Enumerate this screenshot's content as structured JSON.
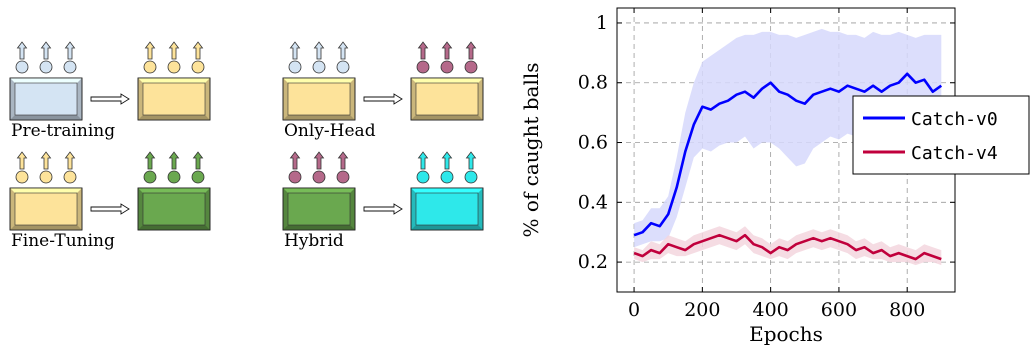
{
  "diagram": {
    "panels": [
      {
        "label": "Pre-training",
        "from": {
          "fill": "#d4e4f3",
          "edge": "#6f8fb3",
          "circle": "#d4e4f3",
          "arrow": "#d4e4f3"
        },
        "to": {
          "fill": "#fde39a",
          "edge": "#b79a4a",
          "circle": "#fde39a",
          "arrow": "#fde39a"
        }
      },
      {
        "label": "Only-Head",
        "from": {
          "fill": "#fde39a",
          "edge": "#b79a4a",
          "circle": "#d4e4f3",
          "arrow": "#d4e4f3"
        },
        "to": {
          "fill": "#fde39a",
          "edge": "#b79a4a",
          "circle": "#b5698a",
          "arrow": "#b5698a"
        }
      },
      {
        "label": "Fine-Tuning",
        "from": {
          "fill": "#fde39a",
          "edge": "#b79a4a",
          "circle": "#fde39a",
          "arrow": "#fde39a"
        },
        "to": {
          "fill": "#6aa84f",
          "edge": "#3d6b2a",
          "circle": "#6aa84f",
          "arrow": "#6aa84f"
        }
      },
      {
        "label": "Hybrid",
        "from": {
          "fill": "#6aa84f",
          "edge": "#3d6b2a",
          "circle": "#b5698a",
          "arrow": "#b5698a"
        },
        "to": {
          "fill": "#2ee8ea",
          "edge": "#1a9a9c",
          "circle": "#2ee8ea",
          "arrow": "#2ee8ea"
        }
      }
    ]
  },
  "chart_data": {
    "type": "line",
    "xlabel": "Epochs",
    "ylabel": "% of caught balls",
    "xlim": [
      -50,
      940
    ],
    "ylim": [
      0.1,
      1.05
    ],
    "xticks": [
      0,
      200,
      400,
      600,
      800
    ],
    "xtick_labels": [
      "0",
      "200",
      "400",
      "600",
      "800"
    ],
    "yticks": [
      0.2,
      0.4,
      0.6,
      0.8,
      1.0
    ],
    "ytick_labels": [
      "0.2",
      "0.4",
      "0.6",
      "0.8",
      "1"
    ],
    "grid": true,
    "legend_position": "right",
    "series": [
      {
        "name": "Catch-v0",
        "color": "#0000ff",
        "band_color": "#d6d8fb",
        "x": [
          0,
          25,
          50,
          75,
          100,
          125,
          150,
          175,
          200,
          225,
          250,
          275,
          300,
          325,
          350,
          375,
          400,
          425,
          450,
          475,
          500,
          525,
          550,
          575,
          600,
          625,
          650,
          675,
          700,
          725,
          750,
          775,
          800,
          825,
          850,
          875,
          900
        ],
        "y": [
          0.29,
          0.3,
          0.33,
          0.32,
          0.36,
          0.45,
          0.57,
          0.66,
          0.72,
          0.71,
          0.73,
          0.74,
          0.76,
          0.77,
          0.75,
          0.78,
          0.8,
          0.77,
          0.76,
          0.74,
          0.73,
          0.76,
          0.77,
          0.78,
          0.77,
          0.79,
          0.78,
          0.77,
          0.79,
          0.77,
          0.79,
          0.8,
          0.83,
          0.8,
          0.81,
          0.77,
          0.79
        ],
        "lower": [
          0.25,
          0.26,
          0.27,
          0.27,
          0.28,
          0.35,
          0.45,
          0.55,
          0.58,
          0.57,
          0.59,
          0.6,
          0.6,
          0.62,
          0.58,
          0.6,
          0.6,
          0.58,
          0.55,
          0.52,
          0.53,
          0.58,
          0.6,
          0.62,
          0.61,
          0.63,
          0.62,
          0.6,
          0.63,
          0.61,
          0.62,
          0.63,
          0.66,
          0.64,
          0.64,
          0.62,
          0.63
        ],
        "upper": [
          0.33,
          0.34,
          0.38,
          0.38,
          0.42,
          0.55,
          0.7,
          0.8,
          0.87,
          0.89,
          0.91,
          0.93,
          0.95,
          0.96,
          0.96,
          0.97,
          0.97,
          0.96,
          0.96,
          0.95,
          0.96,
          0.97,
          0.98,
          0.97,
          0.97,
          0.96,
          0.96,
          0.95,
          0.97,
          0.96,
          0.96,
          0.97,
          0.96,
          0.95,
          0.96,
          0.96,
          0.96
        ]
      },
      {
        "name": "Catch-v4",
        "color": "#c0003c",
        "band_color": "#f3d6de",
        "x": [
          0,
          25,
          50,
          75,
          100,
          125,
          150,
          175,
          200,
          225,
          250,
          275,
          300,
          325,
          350,
          375,
          400,
          425,
          450,
          475,
          500,
          525,
          550,
          575,
          600,
          625,
          650,
          675,
          700,
          725,
          750,
          775,
          800,
          825,
          850,
          875,
          900
        ],
        "y": [
          0.23,
          0.22,
          0.24,
          0.23,
          0.26,
          0.25,
          0.24,
          0.26,
          0.27,
          0.28,
          0.29,
          0.28,
          0.27,
          0.29,
          0.26,
          0.25,
          0.23,
          0.25,
          0.24,
          0.26,
          0.27,
          0.28,
          0.27,
          0.28,
          0.27,
          0.26,
          0.24,
          0.25,
          0.23,
          0.24,
          0.22,
          0.23,
          0.22,
          0.21,
          0.23,
          0.22,
          0.21
        ],
        "lower": [
          0.21,
          0.2,
          0.21,
          0.21,
          0.23,
          0.22,
          0.22,
          0.23,
          0.24,
          0.25,
          0.26,
          0.25,
          0.24,
          0.26,
          0.23,
          0.22,
          0.21,
          0.22,
          0.21,
          0.23,
          0.24,
          0.25,
          0.24,
          0.25,
          0.24,
          0.23,
          0.21,
          0.22,
          0.21,
          0.21,
          0.2,
          0.2,
          0.2,
          0.19,
          0.2,
          0.2,
          0.19
        ],
        "upper": [
          0.25,
          0.24,
          0.27,
          0.26,
          0.29,
          0.28,
          0.27,
          0.29,
          0.3,
          0.31,
          0.32,
          0.31,
          0.3,
          0.32,
          0.29,
          0.28,
          0.26,
          0.28,
          0.27,
          0.29,
          0.3,
          0.31,
          0.3,
          0.31,
          0.3,
          0.29,
          0.27,
          0.28,
          0.26,
          0.27,
          0.25,
          0.26,
          0.25,
          0.24,
          0.26,
          0.25,
          0.24
        ]
      }
    ]
  }
}
